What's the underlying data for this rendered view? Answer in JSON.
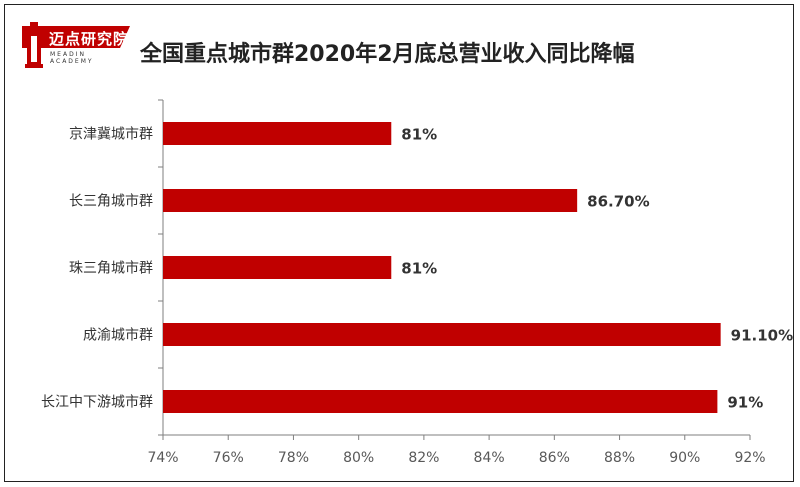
{
  "logo": {
    "name": "迈点研究院",
    "subtitle": "MEADIN ACADEMY"
  },
  "title": "全国重点城市群2020年2月底总营业收入同比降幅",
  "colors": {
    "bar": "#C00000",
    "logo": "#C00000",
    "axis": "#7f7f7f",
    "text": "#333333"
  },
  "chart_data": {
    "type": "bar",
    "orientation": "horizontal",
    "title": "全国重点城市群2020年2月底总营业收入同比降幅",
    "categories": [
      "京津冀城市群",
      "长三角城市群",
      "珠三角城市群",
      "成渝城市群",
      "长江中下游城市群"
    ],
    "values": [
      81,
      86.7,
      81,
      91.1,
      91
    ],
    "value_labels": [
      "81%",
      "86.70%",
      "81%",
      "91.10%",
      "91%"
    ],
    "xlim": [
      74,
      92
    ],
    "x_ticks": [
      74,
      76,
      78,
      80,
      82,
      84,
      86,
      88,
      90,
      92
    ],
    "x_tick_labels": [
      "74%",
      "76%",
      "78%",
      "80%",
      "82%",
      "84%",
      "86%",
      "88%",
      "90%",
      "92%"
    ],
    "grid": false,
    "legend": "none"
  }
}
